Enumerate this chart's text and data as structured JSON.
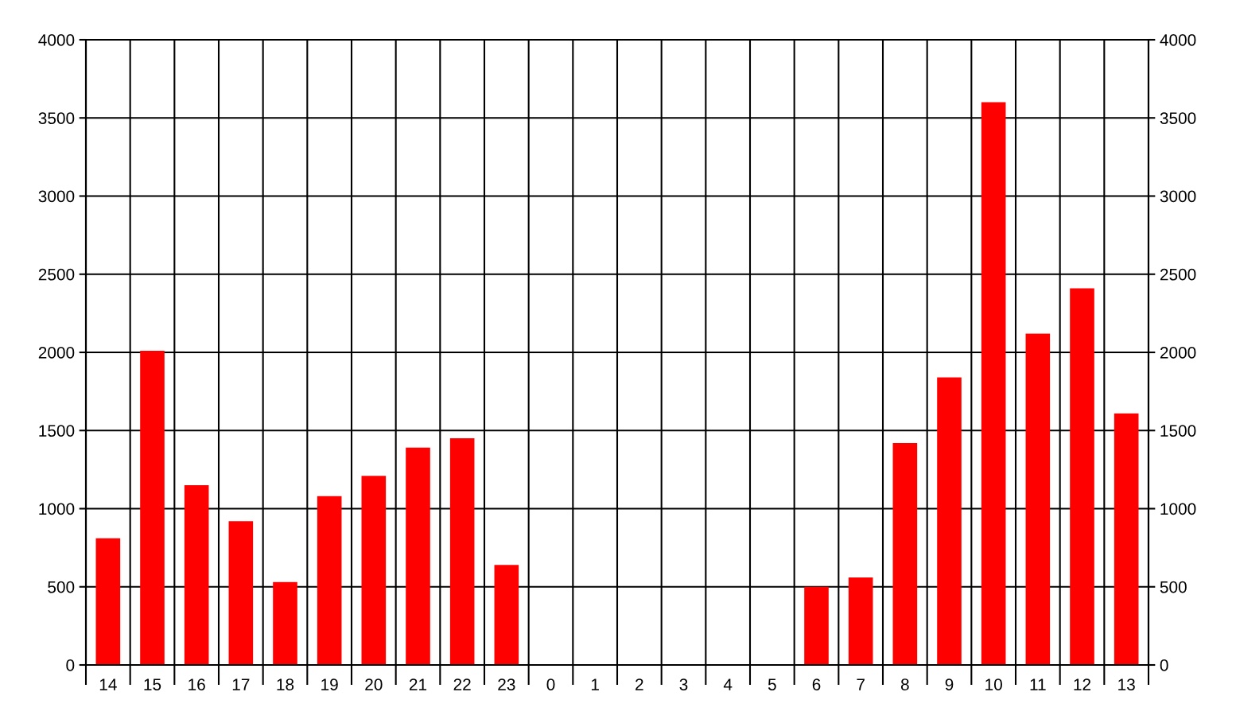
{
  "chart_data": {
    "type": "bar",
    "categories": [
      "14",
      "15",
      "16",
      "17",
      "18",
      "19",
      "20",
      "21",
      "22",
      "23",
      "0",
      "1",
      "2",
      "3",
      "4",
      "5",
      "6",
      "7",
      "8",
      "9",
      "10",
      "11",
      "12",
      "13"
    ],
    "values": [
      810,
      2010,
      1150,
      920,
      530,
      1080,
      1210,
      1390,
      1450,
      640,
      null,
      null,
      null,
      null,
      null,
      null,
      500,
      560,
      1420,
      1840,
      3600,
      2120,
      2410,
      1610
    ],
    "color": "#ff0000",
    "ylim": [
      0,
      4000
    ],
    "yticks": [
      0,
      500,
      1000,
      1500,
      2000,
      2500,
      3000,
      3500,
      4000
    ],
    "y2lim": [
      0,
      4000
    ],
    "y2ticks": [
      0,
      500,
      1000,
      1500,
      2000,
      2500,
      3000,
      3500,
      4000
    ],
    "grid": true
  }
}
